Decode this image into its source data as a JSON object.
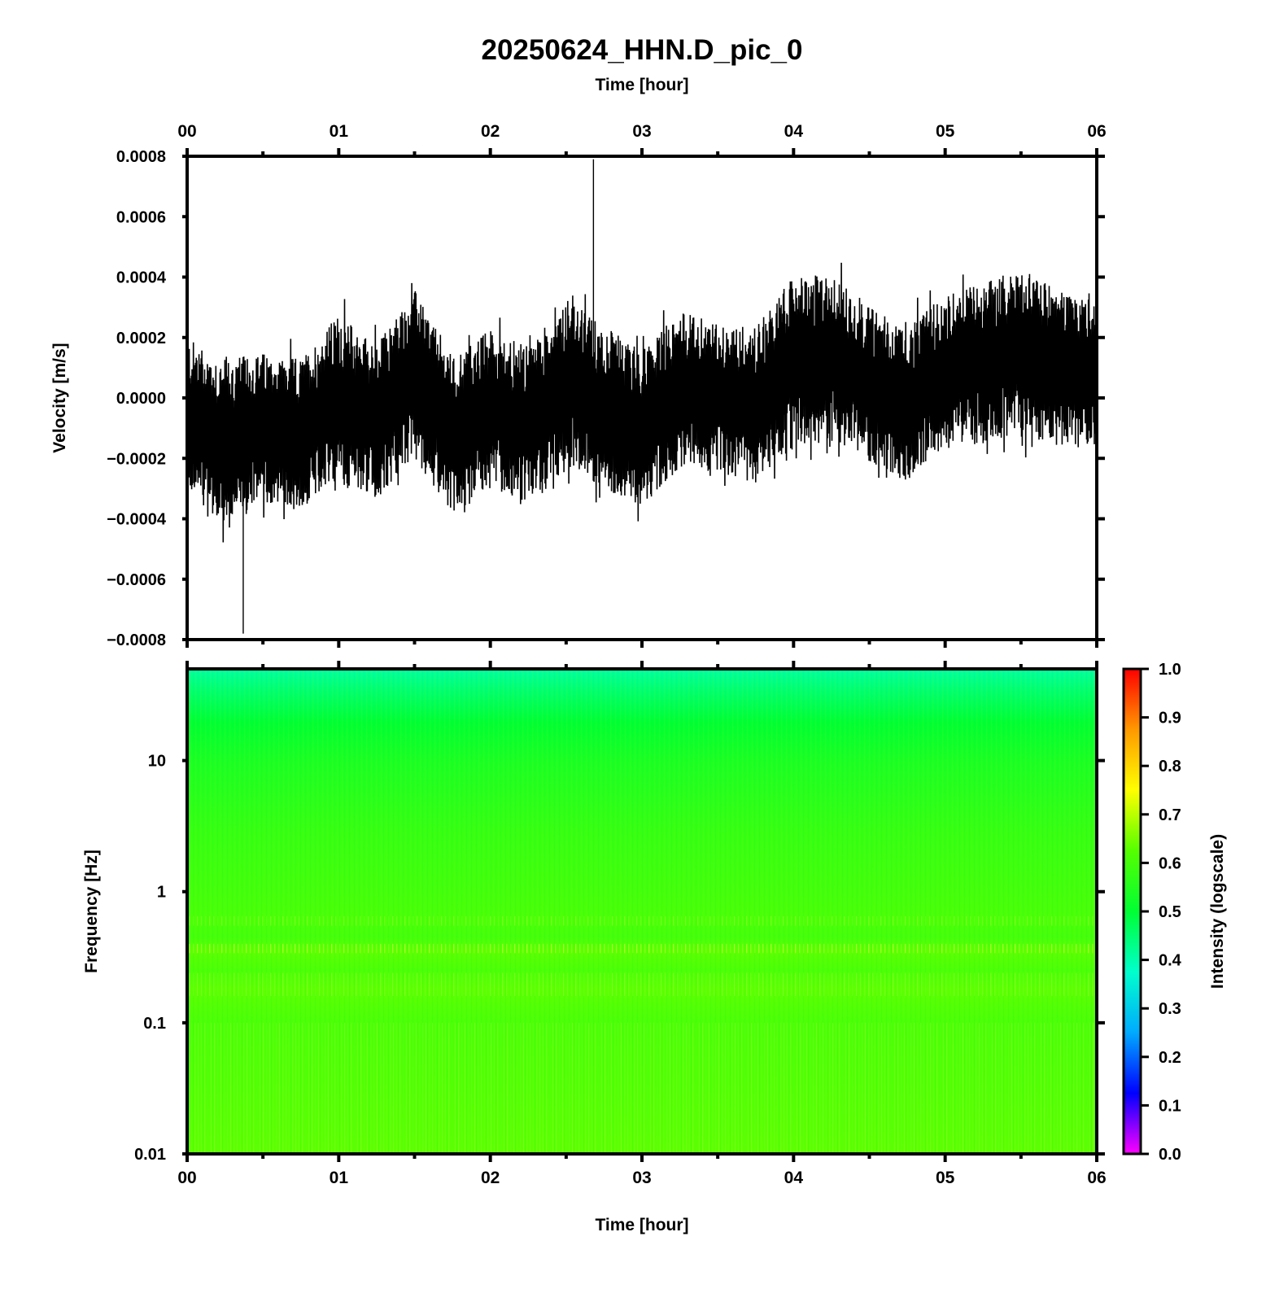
{
  "figure": {
    "title": "20250624_HHN.D_pic_0"
  },
  "chart_data": [
    {
      "type": "line",
      "name": "waveform",
      "top_xlabel": "Time [hour]",
      "ylabel": "Velocity [m/s]",
      "x_unit": "hour",
      "xlim": [
        0,
        6
      ],
      "ylim": [
        -0.0008,
        0.0008
      ],
      "x_tick_labels": [
        "00",
        "01",
        "02",
        "03",
        "04",
        "05",
        "06"
      ],
      "y_ticks": [
        -0.0008,
        -0.0006,
        -0.0004,
        -0.0002,
        0.0,
        0.0002,
        0.0004,
        0.0006,
        0.0008
      ],
      "y_tick_labels": [
        "−0.0008",
        "−0.0006",
        "−0.0004",
        "−0.0002",
        "0.0000",
        "0.0002",
        "0.0004",
        "0.0006",
        "0.0008"
      ],
      "line_color": "#000000",
      "envelope": {
        "x": [
          0.0,
          0.25,
          0.5,
          0.75,
          1.0,
          1.25,
          1.5,
          1.75,
          2.0,
          2.25,
          2.5,
          2.75,
          3.0,
          3.25,
          3.5,
          3.75,
          4.0,
          4.25,
          4.5,
          4.75,
          5.0,
          5.25,
          5.5,
          5.75,
          6.0
        ],
        "center": [
          -5e-05,
          -0.00015,
          -0.0001,
          -0.00012,
          0.0,
          -8e-05,
          8e-05,
          -0.00012,
          -3e-05,
          -0.0001,
          5e-05,
          -3e-05,
          -0.0001,
          3e-05,
          0.0,
          -2e-05,
          0.00012,
          0.00013,
          5e-05,
          -2e-05,
          8e-05,
          0.00012,
          0.00015,
          0.0001,
          8e-05
        ],
        "half_width": [
          0.00025,
          0.00028,
          0.00025,
          0.00025,
          0.00028,
          0.00026,
          0.00028,
          0.00026,
          0.00026,
          0.00027,
          0.00028,
          0.00027,
          0.00026,
          0.00026,
          0.00025,
          0.00026,
          0.00028,
          0.00028,
          0.00026,
          0.00026,
          0.00026,
          0.00027,
          0.00028,
          0.00026,
          0.00025
        ]
      },
      "peak_max": {
        "x": 2.68,
        "y": 0.00079
      },
      "peak_min": {
        "x": 0.37,
        "y": -0.00078
      }
    },
    {
      "type": "heatmap",
      "name": "spectrogram",
      "xlabel": "Time [hour]",
      "ylabel": "Frequency [Hz]",
      "x_unit": "hour",
      "xlim": [
        0,
        6
      ],
      "y_scale": "log",
      "ylim": [
        0.01,
        50
      ],
      "x_tick_labels": [
        "00",
        "01",
        "02",
        "03",
        "04",
        "05",
        "06"
      ],
      "y_ticks": [
        0.01,
        0.1,
        1,
        10
      ],
      "y_tick_labels": [
        "0.01",
        "0.1",
        "1",
        "10"
      ],
      "intensity_profile": {
        "frequency_hz": [
          0.01,
          0.03,
          0.1,
          0.18,
          0.25,
          0.35,
          0.45,
          0.6,
          1,
          3,
          10,
          20,
          35,
          50
        ],
        "intensity": [
          0.63,
          0.62,
          0.61,
          0.63,
          0.61,
          0.63,
          0.6,
          0.61,
          0.6,
          0.58,
          0.54,
          0.5,
          0.45,
          0.41
        ]
      },
      "colorbar": {
        "label": "Intensity (logscale)",
        "range": [
          0.0,
          1.0
        ],
        "ticks": [
          0.0,
          0.1,
          0.2,
          0.3,
          0.4,
          0.5,
          0.6,
          0.7,
          0.8,
          0.9,
          1.0
        ],
        "tick_labels": [
          "0.0",
          "0.1",
          "0.2",
          "0.3",
          "0.4",
          "0.5",
          "0.6",
          "0.7",
          "0.8",
          "0.9",
          "1.0"
        ],
        "colors": [
          "#ff00ff",
          "#0000ff",
          "#00aaff",
          "#00ffcc",
          "#00ff33",
          "#55ff00",
          "#ffff00",
          "#ff9900",
          "#ff0000"
        ]
      }
    }
  ]
}
